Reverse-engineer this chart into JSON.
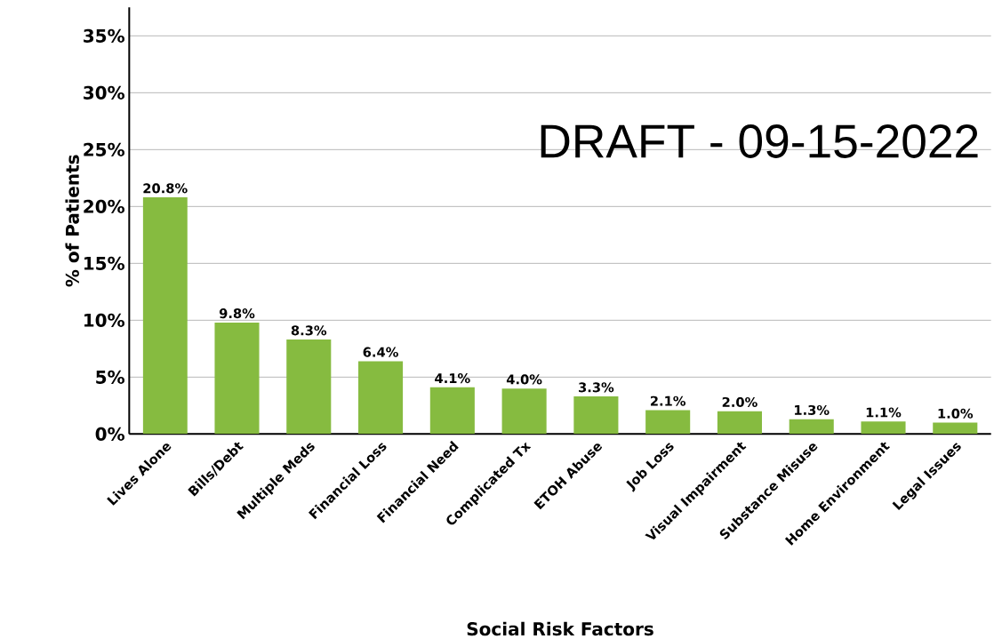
{
  "chart_data": {
    "type": "bar",
    "xlabel": "Social Risk Factors",
    "ylabel": "% of Patients",
    "categories": [
      "Lives Alone",
      "Bills/Debt",
      "Multiple Meds",
      "Financial Loss",
      "Financial Need",
      "Complicated Tx",
      "ETOH Abuse",
      "Job Loss",
      "Visual Impairment",
      "Substance Misuse",
      "Home Environment",
      "Legal Issues"
    ],
    "values": [
      20.8,
      9.8,
      8.3,
      6.4,
      4.1,
      4.0,
      3.3,
      2.1,
      2.0,
      1.3,
      1.1,
      1.0
    ],
    "value_labels": [
      "20.8%",
      "9.8%",
      "8.3%",
      "6.4%",
      "4.1%",
      "4.0%",
      "3.3%",
      "2.1%",
      "2.0%",
      "1.3%",
      "1.1%",
      "1.0%"
    ],
    "color": "#86bb40",
    "ylim": [
      0,
      37.5
    ],
    "yticks": [
      {
        "value": 0,
        "label": "0%"
      },
      {
        "value": 5,
        "label": "5%"
      },
      {
        "value": 10,
        "label": "10%"
      },
      {
        "value": 15,
        "label": "15%"
      },
      {
        "value": 20,
        "label": "20%"
      },
      {
        "value": 25,
        "label": "25%"
      },
      {
        "value": 30,
        "label": "30%"
      },
      {
        "value": 35,
        "label": "35%"
      }
    ],
    "grid": "y",
    "annotations": [
      "DRAFT - 09-15-2022"
    ]
  }
}
